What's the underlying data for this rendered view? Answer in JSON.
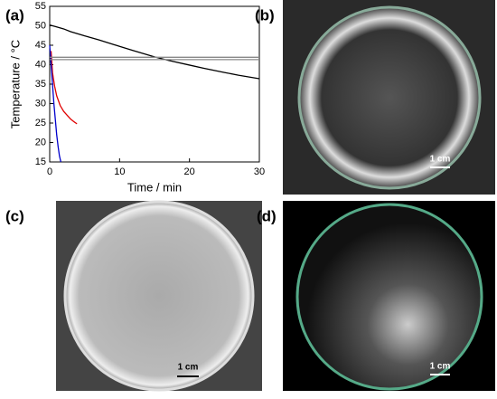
{
  "chart_data": {
    "type": "line",
    "x_label": "Time / min",
    "y_label": "Temperature / °C",
    "xlim": [
      0,
      30
    ],
    "xticks": [
      0,
      10,
      20,
      30
    ],
    "ylim": [
      15,
      55
    ],
    "yticks": [
      15,
      20,
      25,
      30,
      35,
      40,
      45,
      50,
      55
    ],
    "series": [
      {
        "color": "#000000",
        "x": [
          0,
          1,
          2,
          3,
          5,
          7,
          10,
          12,
          15,
          17,
          20,
          22,
          25,
          27,
          30
        ],
        "values": [
          50.2,
          49.7,
          49.2,
          48.5,
          47.4,
          46.4,
          44.7,
          43.6,
          42.0,
          41.1,
          39.9,
          39.1,
          38.0,
          37.3,
          36.4
        ]
      },
      {
        "color": "#e00000",
        "x": [
          0.2,
          0.4,
          0.7,
          1,
          1.5,
          2,
          2.5,
          3,
          3.5,
          3.9
        ],
        "values": [
          43.5,
          38,
          34.5,
          32,
          29.5,
          28,
          27,
          26,
          25.3,
          24.8
        ]
      },
      {
        "color": "#0000cc",
        "x": [
          0,
          0.2,
          0.4,
          0.6,
          0.8,
          1,
          1.2,
          1.4,
          1.6
        ],
        "values": [
          45,
          40,
          35,
          30,
          26,
          22,
          19,
          16.5,
          15
        ]
      },
      {
        "color": "#888888",
        "x": [
          0,
          30
        ],
        "values": [
          41.9,
          41.9
        ]
      },
      {
        "color": "#888888",
        "x": [
          0,
          30
        ],
        "values": [
          41.3,
          41.3
        ]
      }
    ]
  },
  "panels": [
    {
      "label": "(a)"
    },
    {
      "label": "(b)",
      "scale_bar": "1 cm"
    },
    {
      "label": "(c)",
      "scale_bar": "1 cm"
    },
    {
      "label": "(d)",
      "scale_bar": "1 cm"
    }
  ]
}
